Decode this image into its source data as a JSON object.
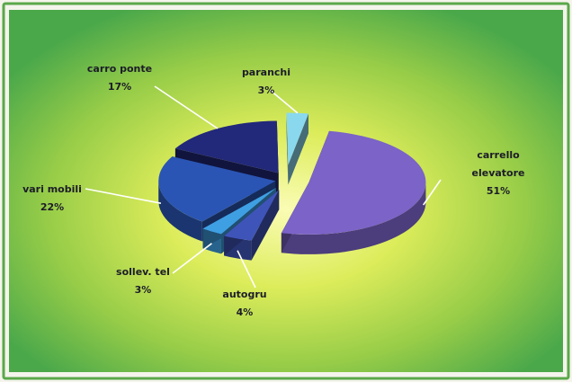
{
  "chart_data": {
    "type": "pie",
    "title": "",
    "slices": [
      {
        "label": "carrello elevatore",
        "value": 51,
        "value_label": "51%",
        "color": "#7b63c8"
      },
      {
        "label": "autogru",
        "value": 4,
        "value_label": "4%",
        "color": "#3f54b8"
      },
      {
        "label": "sollev. tel",
        "value": 3,
        "value_label": "3%",
        "color": "#3f9fe3"
      },
      {
        "label": "vari mobili",
        "value": 22,
        "value_label": "22%",
        "color": "#2a55b4"
      },
      {
        "label": "carro ponte",
        "value": 17,
        "value_label": "17%",
        "color": "#22287a"
      },
      {
        "label": "paranchi",
        "value": 3,
        "value_label": "3%",
        "color": "#8ad8ee"
      }
    ],
    "style": "3d-exploded",
    "legend": "none",
    "data_labels": "outside-with-leader-lines"
  },
  "colors": {
    "border": "#5aa84a",
    "background_inner": "#f4f4a0",
    "background_outer": "#4aa84a",
    "leader_line": "#ffffff"
  }
}
